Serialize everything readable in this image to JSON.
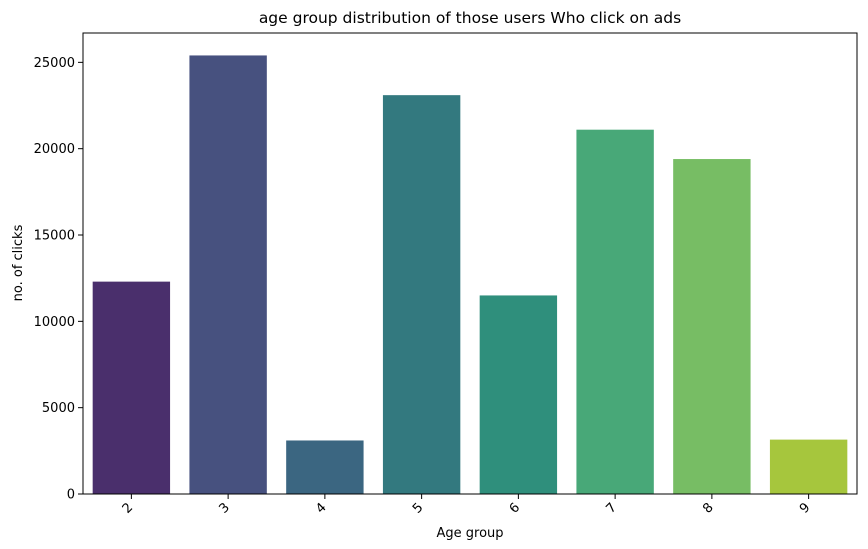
{
  "chart_data": {
    "type": "bar",
    "title": "age group distribution of those users Who click on ads",
    "xlabel": "Age  group",
    "ylabel": "no. of clicks",
    "categories": [
      "2",
      "3",
      "4",
      "5",
      "6",
      "7",
      "8",
      "9"
    ],
    "values": [
      12300,
      25400,
      3100,
      23100,
      11500,
      21100,
      19400,
      3150
    ],
    "ylim": [
      0,
      26700
    ],
    "yticks": [
      0,
      5000,
      10000,
      15000,
      20000,
      25000
    ],
    "ytick_labels": [
      "0",
      "5000",
      "10000",
      "15000",
      "20000",
      "25000"
    ],
    "colors": [
      "#4a2f6c",
      "#47517f",
      "#3b6681",
      "#33797f",
      "#2f8f7c",
      "#48a878",
      "#77bd64",
      "#a6c63d"
    ],
    "grid": false,
    "legend": "none",
    "xtick_rotation": 45
  }
}
